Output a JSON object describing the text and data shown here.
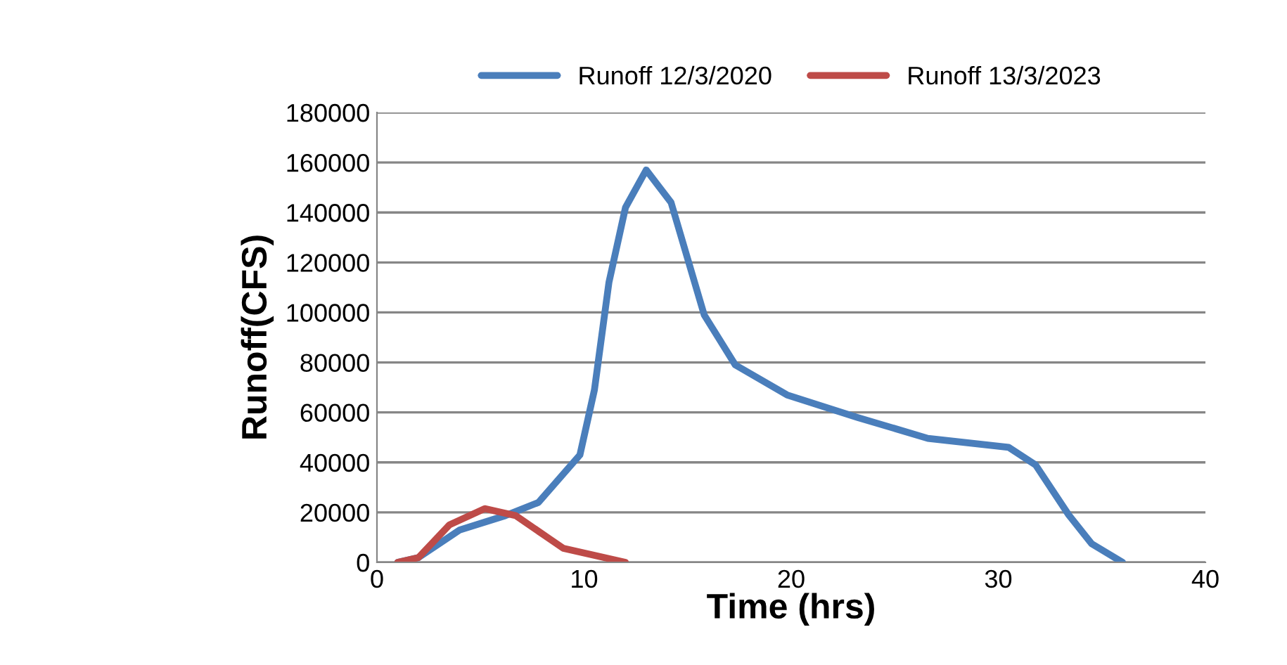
{
  "chart_data": {
    "type": "line",
    "xlabel": "Time (hrs)",
    "ylabel": "Runoff(CFS)",
    "xlim": [
      0,
      40
    ],
    "xticks": [
      0,
      10,
      20,
      30,
      40
    ],
    "ylim": [
      0,
      180000
    ],
    "yticks": [
      0,
      20000,
      40000,
      60000,
      80000,
      100000,
      120000,
      140000,
      160000,
      180000
    ],
    "grid": "y",
    "legend": "top",
    "marker": "none",
    "line_style": "solid",
    "series": [
      {
        "name": "Runoff 12/3/2020",
        "color": "#4a7ebb",
        "x": [
          1,
          2,
          4,
          6.2,
          7.8,
          9.8,
          10.5,
          11.2,
          12,
          13,
          14.2,
          15.8,
          17.3,
          19.8,
          23.2,
          26.6,
          30.5,
          31.8,
          33.4,
          34.5,
          36
        ],
        "values": [
          0,
          1900,
          13000,
          18700,
          24000,
          43000,
          69000,
          112000,
          142000,
          157000,
          144000,
          99000,
          79000,
          67000,
          58000,
          49600,
          46000,
          39000,
          19000,
          7500,
          0
        ]
      },
      {
        "name": "Runoff 13/3/2023",
        "color": "#be4b48",
        "x": [
          1,
          2,
          3.5,
          5.2,
          6.7,
          9,
          12
        ],
        "values": [
          0,
          1900,
          15000,
          21500,
          18700,
          5600,
          0
        ]
      }
    ]
  }
}
